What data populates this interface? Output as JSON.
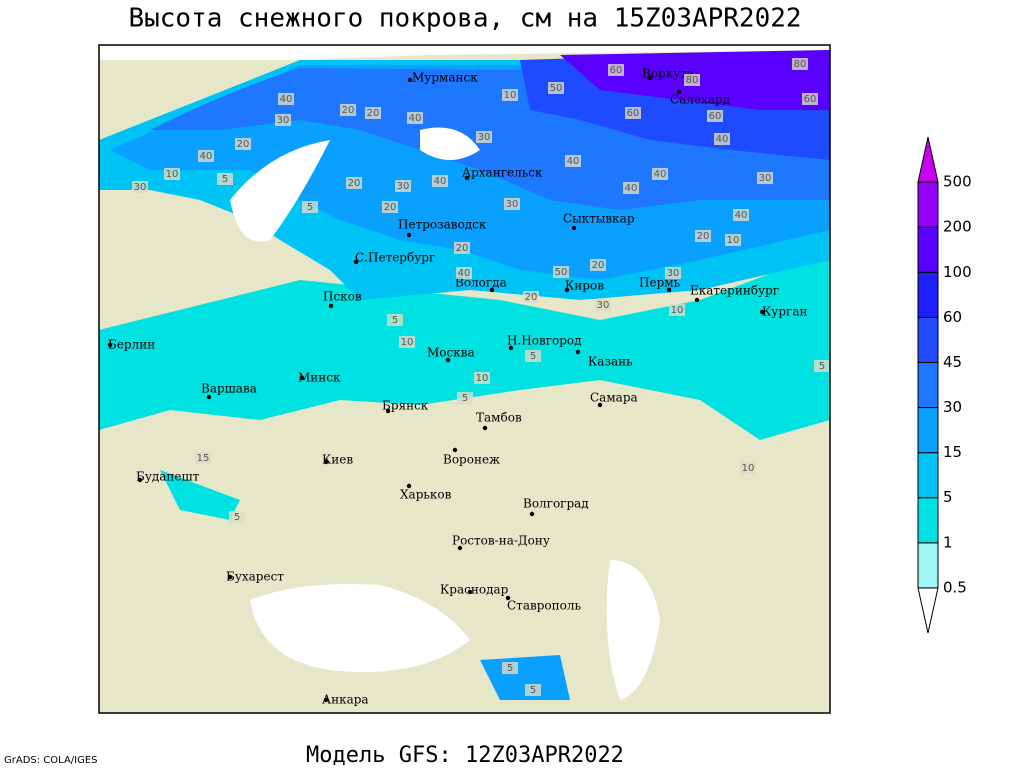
{
  "header": {
    "title": "Высота снежного покрова, см на 15Z03APR2022"
  },
  "footer": {
    "model": "Модель GFS: 12Z03APR2022",
    "credit": "GrADS: COLA/IGES"
  },
  "colorbar": {
    "levels": [
      0.5,
      1,
      5,
      15,
      30,
      45,
      60,
      100,
      200,
      500
    ],
    "colors": [
      "#ffffff",
      "#a0f5f5",
      "#00e1e1",
      "#00c3f5",
      "#0aa0ff",
      "#1e78ff",
      "#1e4bff",
      "#1e1eff",
      "#5a00ff",
      "#9600ff",
      "#c800f0"
    ]
  },
  "cities": [
    "Мурманск",
    "Воркута",
    "Салехард",
    "Архангельск",
    "Сыктывкар",
    "Петрозаводск",
    "С.Петербург",
    "Вологда",
    "Киров",
    "Пермь",
    "Екатеринбург",
    "Псков",
    "Курган",
    "Берлин",
    "Н.Новгород",
    "Москва",
    "Казань",
    "Минск",
    "Варшава",
    "Брянск",
    "Тамбов",
    "Самара",
    "Киев",
    "Воронеж",
    "Будапешт",
    "Харьков",
    "Волгоград",
    "Ростов-на-Дону",
    "Бухарест",
    "Краснодар",
    "Ставрополь",
    "Анкара"
  ],
  "contour_labels": [
    40,
    20,
    20,
    40,
    30,
    20,
    10,
    5,
    40,
    30,
    5,
    20,
    30,
    20,
    40,
    30,
    10,
    50,
    60,
    80,
    80,
    60,
    60,
    60,
    40,
    40,
    40,
    40,
    30,
    30,
    40,
    20,
    10,
    20,
    20,
    50,
    40,
    30,
    20,
    30,
    10,
    5,
    10,
    5,
    5,
    10,
    5,
    10,
    15,
    5,
    5,
    5
  ]
}
